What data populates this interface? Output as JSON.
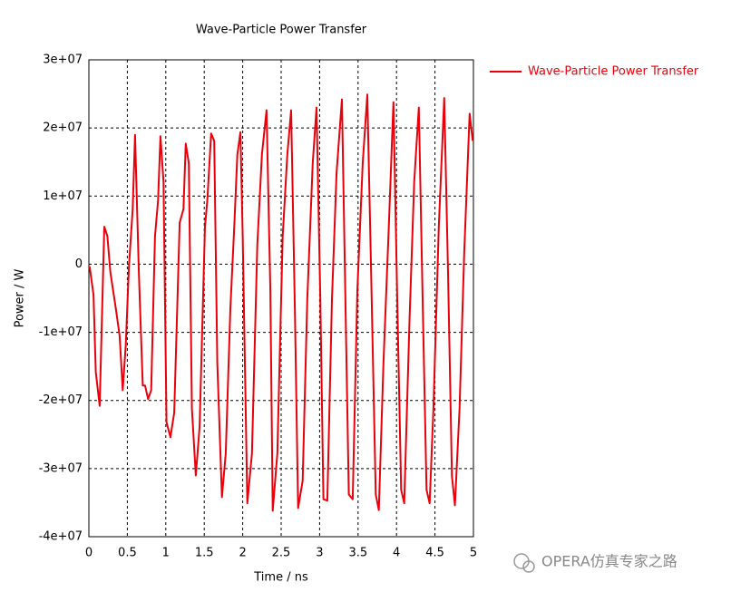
{
  "chart_data": {
    "type": "line",
    "title": "Wave-Particle Power Transfer",
    "x_label": "Time / ns",
    "y_label": "Power / W",
    "xlim": [
      0,
      5
    ],
    "xticks": [
      0,
      0.5,
      1,
      1.5,
      2,
      2.5,
      3,
      3.5,
      4,
      4.5,
      5
    ],
    "ylim": [
      -40000000.0,
      30000000.0
    ],
    "yticks": [
      {
        "value": -40000000.0,
        "label": "-4e+07"
      },
      {
        "value": -30000000.0,
        "label": "-3e+07"
      },
      {
        "value": -20000000.0,
        "label": "-2e+07"
      },
      {
        "value": -10000000.0,
        "label": "-1e+07"
      },
      0,
      {
        "value": 10000000.0,
        "label": "1e+07"
      },
      {
        "value": 20000000.0,
        "label": "2e+07"
      },
      {
        "value": 30000000.0,
        "label": "3e+07"
      }
    ],
    "grid": true,
    "legend": "upper right",
    "watermark": "OPERA仿真专家之路",
    "series": [
      {
        "name": "Wave-Particle Power Transfer",
        "color": "#e8000b",
        "x": [
          0.01,
          0.06,
          0.09,
          0.14,
          0.2,
          0.24,
          0.28,
          0.35,
          0.4,
          0.44,
          0.48,
          0.52,
          0.57,
          0.6,
          0.65,
          0.7,
          0.73,
          0.77,
          0.81,
          0.86,
          0.9,
          0.93,
          0.97,
          1.01,
          1.06,
          1.11,
          1.18,
          1.23,
          1.26,
          1.3,
          1.34,
          1.39,
          1.44,
          1.51,
          1.54,
          1.59,
          1.63,
          1.67,
          1.73,
          1.78,
          1.84,
          1.89,
          1.93,
          1.97,
          2.0,
          2.06,
          2.12,
          2.19,
          2.25,
          2.31,
          2.36,
          2.39,
          2.45,
          2.52,
          2.58,
          2.63,
          2.68,
          2.72,
          2.78,
          2.84,
          2.91,
          2.96,
          3.01,
          3.05,
          3.1,
          3.16,
          3.22,
          3.29,
          3.34,
          3.38,
          3.43,
          3.49,
          3.56,
          3.62,
          3.67,
          3.73,
          3.77,
          3.83,
          3.9,
          3.96,
          4.01,
          4.06,
          4.1,
          4.17,
          4.23,
          4.29,
          4.34,
          4.39,
          4.43,
          4.48,
          4.55,
          4.62,
          4.67,
          4.72,
          4.76,
          4.82,
          4.88,
          4.95,
          4.99
        ],
        "values": [
          -300000.0,
          -4500000.0,
          -15800000.0,
          -20800000.0,
          5500000.0,
          4100000.0,
          -1200000.0,
          -6500000.0,
          -10500000.0,
          -18500000.0,
          -11800000.0,
          -500000.0,
          8100000.0,
          19000000.0,
          -1200000.0,
          -17800000.0,
          -17800000.0,
          -19800000.0,
          -18500000.0,
          4100000.0,
          9400000.0,
          18800000.0,
          12100000.0,
          -23200000.0,
          -25400000.0,
          -21800000.0,
          6100000.0,
          8100000.0,
          17700000.0,
          14800000.0,
          -21200000.0,
          -31000000.0,
          -23800000.0,
          5500000.0,
          9400000.0,
          19200000.0,
          18100000.0,
          -14500000.0,
          -34200000.0,
          -27800000.0,
          -6500000.0,
          5500000.0,
          16100000.0,
          19400000.0,
          4100000.0,
          -35100000.0,
          -27800000.0,
          2800000.0,
          16100000.0,
          22600000.0,
          -3900000.0,
          -36200000.0,
          -27800000.0,
          4100000.0,
          16100000.0,
          22600000.0,
          -7900000.0,
          -35800000.0,
          -31800000.0,
          -5200000.0,
          14800000.0,
          23000000.0,
          -5200000.0,
          -34500000.0,
          -34700000.0,
          -5200000.0,
          13400000.0,
          24200000.0,
          -7900000.0,
          -33800000.0,
          -34500000.0,
          -3900000.0,
          14800000.0,
          24900000.0,
          -1200000.0,
          -33800000.0,
          -36100000.0,
          -14500000.0,
          5500000.0,
          23800000.0,
          -5200000.0,
          -33100000.0,
          -35100000.0,
          -7900000.0,
          12100000.0,
          23000000.0,
          -5200000.0,
          -33100000.0,
          -35100000.0,
          -21200000.0,
          5500000.0,
          24400000.0,
          -1200000.0,
          -31100000.0,
          -35400000.0,
          -21200000.0,
          1500000.0,
          22100000.0,
          18100000.0
        ]
      }
    ]
  }
}
